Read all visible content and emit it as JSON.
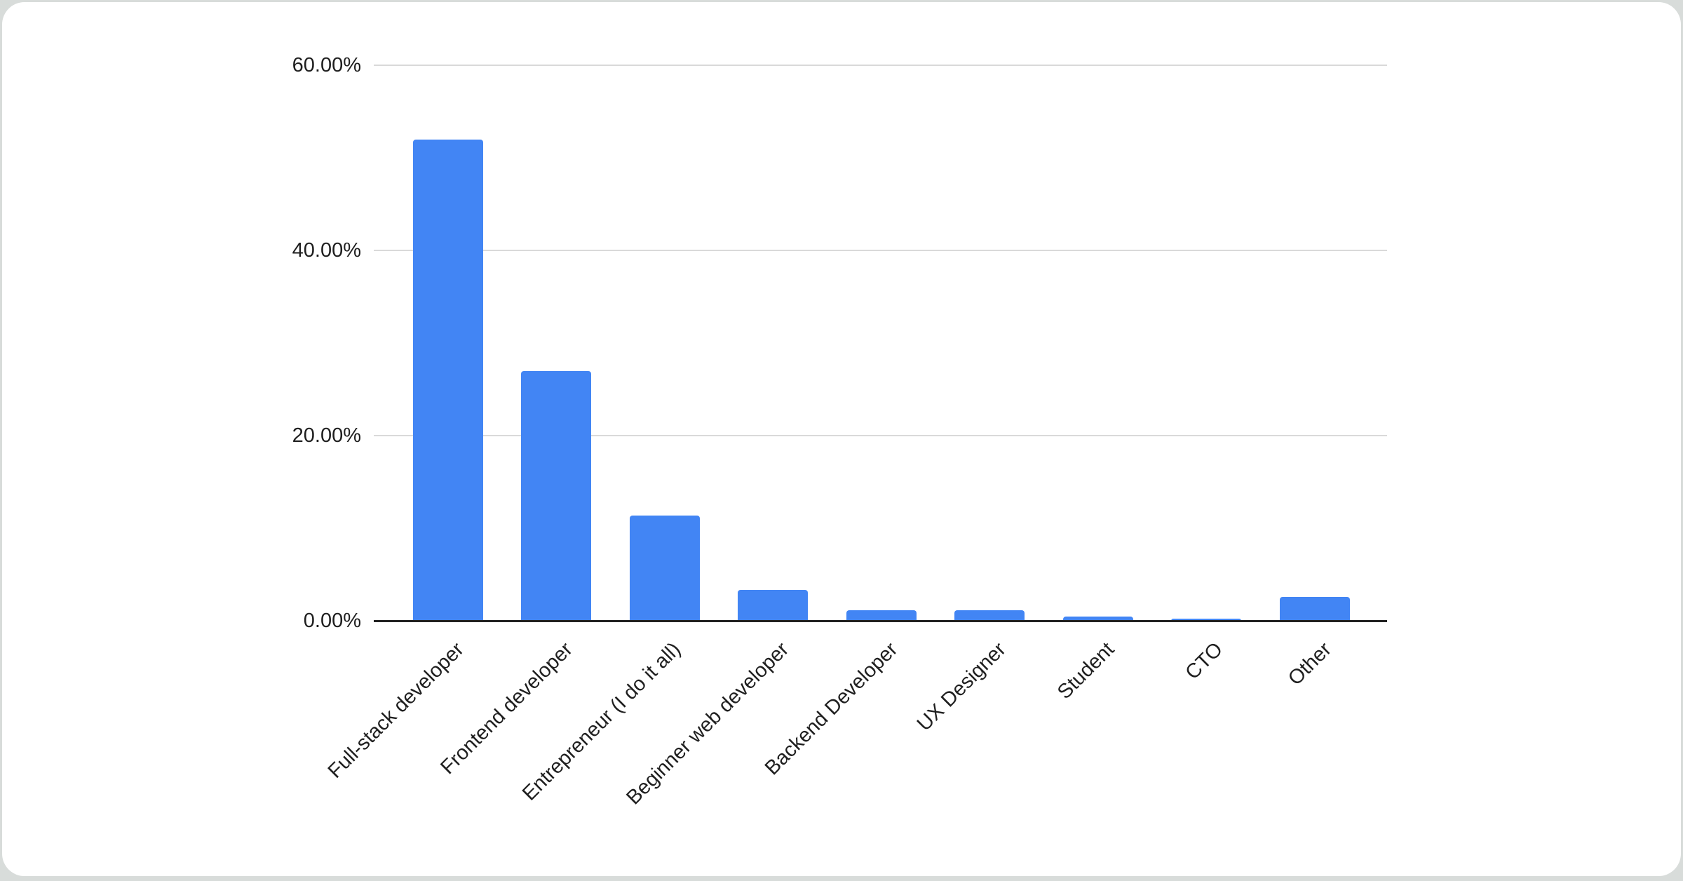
{
  "page": {
    "background_color": "#d8dcda",
    "card_background": "#ffffff"
  },
  "chart_data": {
    "type": "bar",
    "title": "",
    "xlabel": "",
    "ylabel": "",
    "categories": [
      "Full-stack developer",
      "Frontend developer",
      "Entrepreneur (I do it all)",
      "Beginner web developer",
      "Backend Developer",
      "UX Designer",
      "Student",
      "CTO",
      "Other"
    ],
    "values": [
      52.0,
      27.0,
      11.4,
      3.3,
      1.1,
      1.1,
      0.45,
      0.25,
      2.6
    ],
    "unit": "%",
    "ylim": [
      0,
      60
    ],
    "yticks": [
      0,
      20,
      40,
      60
    ],
    "ytick_labels": [
      "0.00%",
      "20.00%",
      "40.00%",
      "60.00%"
    ],
    "grid": true,
    "legend": false,
    "x_label_rotation_deg": -45,
    "bar_color": "#4285f4",
    "gridline_color": "#d9d9d9",
    "axis_line_color": "#212121",
    "label_color": "#1f1f1f"
  }
}
